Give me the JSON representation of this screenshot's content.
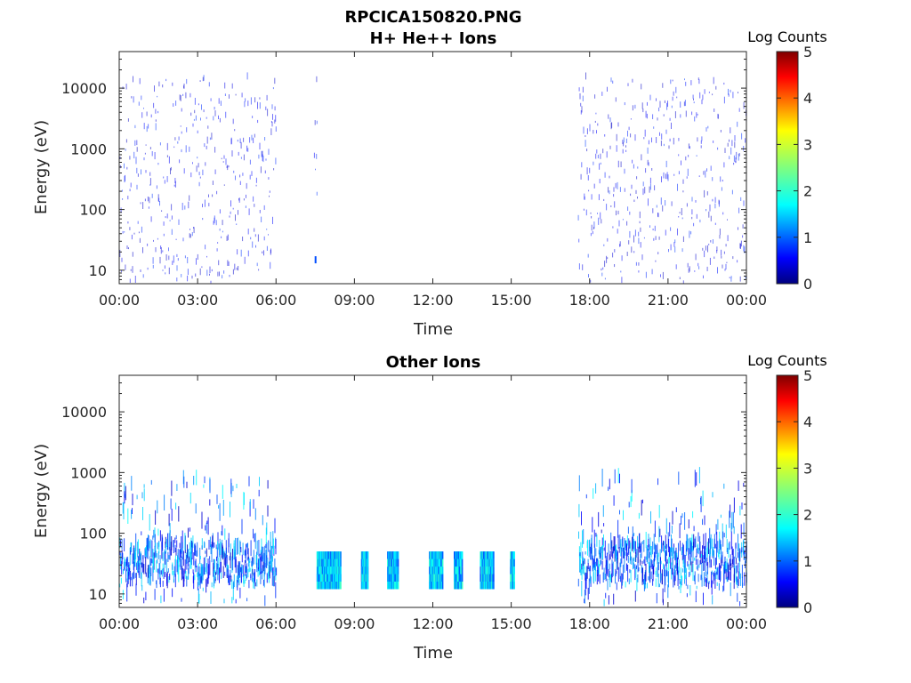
{
  "figure": {
    "title": "RPCICA150820.PNG"
  },
  "chart_data": [
    {
      "type": "heatmap",
      "title": "H+ He++ Ions",
      "xlabel": "Time",
      "ylabel": "Energy (eV)",
      "y_scale": "log",
      "ylim": [
        6,
        40000
      ],
      "x_ticks": [
        "00:00",
        "03:00",
        "06:00",
        "09:00",
        "12:00",
        "15:00",
        "18:00",
        "21:00",
        "00:00"
      ],
      "x_tick_hours": [
        0,
        3,
        6,
        9,
        12,
        15,
        18,
        21,
        24
      ],
      "y_ticks": [
        "10",
        "100",
        "1000",
        "10000"
      ],
      "y_tick_values": [
        10,
        100,
        1000,
        10000
      ],
      "colorbar": {
        "label": "Log Counts",
        "ticks": [
          "0",
          "1",
          "2",
          "3",
          "4",
          "5"
        ],
        "range": [
          0,
          5
        ],
        "colormap": "jet"
      },
      "data_intervals_hours": [
        [
          0.0,
          6.0
        ],
        [
          7.45,
          7.55
        ],
        [
          17.55,
          24.0
        ]
      ],
      "typical_log_counts": [
        0.3,
        0.9
      ],
      "energy_range_eV": [
        6,
        14000
      ]
    },
    {
      "type": "heatmap",
      "title": "Other Ions",
      "xlabel": "Time",
      "ylabel": "Energy (eV)",
      "y_scale": "log",
      "ylim": [
        6,
        40000
      ],
      "x_ticks": [
        "00:00",
        "03:00",
        "06:00",
        "09:00",
        "12:00",
        "15:00",
        "18:00",
        "21:00",
        "00:00"
      ],
      "x_tick_hours": [
        0,
        3,
        6,
        9,
        12,
        15,
        18,
        21,
        24
      ],
      "y_ticks": [
        "10",
        "100",
        "1000",
        "10000"
      ],
      "y_tick_values": [
        10,
        100,
        1000,
        10000
      ],
      "colorbar": {
        "label": "Log Counts",
        "ticks": [
          "0",
          "1",
          "2",
          "3",
          "4",
          "5"
        ],
        "range": [
          0,
          5
        ],
        "colormap": "jet"
      },
      "data_intervals_hours": [
        [
          0.0,
          6.0
        ],
        [
          17.55,
          24.0
        ]
      ],
      "dense_blocks": [
        {
          "start_hour": 7.55,
          "end_hour": 8.45,
          "energy_eV": [
            12,
            50
          ],
          "log_counts": [
            1.0,
            2.2
          ]
        },
        {
          "start_hour": 9.25,
          "end_hour": 9.5,
          "energy_eV": [
            12,
            50
          ],
          "log_counts": [
            1.0,
            2.2
          ]
        },
        {
          "start_hour": 10.25,
          "end_hour": 10.65,
          "energy_eV": [
            12,
            50
          ],
          "log_counts": [
            1.0,
            2.2
          ]
        },
        {
          "start_hour": 11.85,
          "end_hour": 12.35,
          "energy_eV": [
            12,
            50
          ],
          "log_counts": [
            1.0,
            2.2
          ]
        },
        {
          "start_hour": 12.8,
          "end_hour": 13.1,
          "energy_eV": [
            12,
            50
          ],
          "log_counts": [
            1.0,
            2.2
          ]
        },
        {
          "start_hour": 13.8,
          "end_hour": 14.3,
          "energy_eV": [
            12,
            50
          ],
          "log_counts": [
            1.0,
            2.2
          ]
        },
        {
          "start_hour": 14.95,
          "end_hour": 15.1,
          "energy_eV": [
            12,
            50
          ],
          "log_counts": [
            1.0,
            2.2
          ]
        }
      ],
      "typical_log_counts": [
        0.3,
        1.9
      ],
      "energy_range_eV": [
        6,
        700
      ]
    }
  ]
}
